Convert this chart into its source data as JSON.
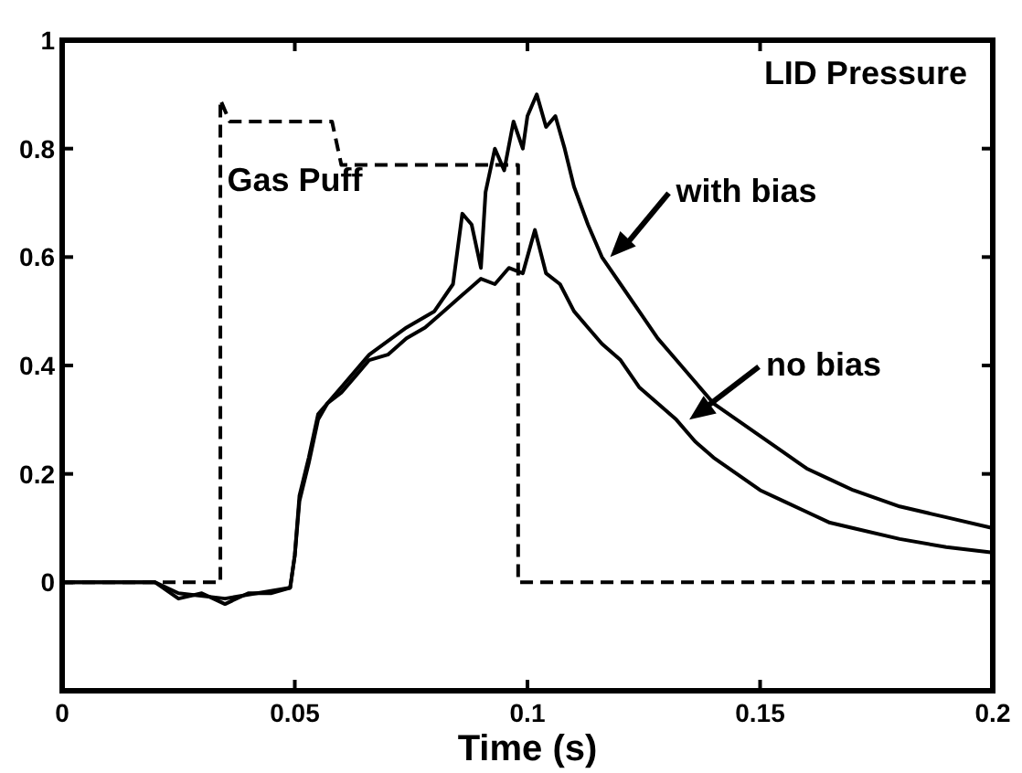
{
  "chart_data": {
    "type": "line",
    "title": "LID Pressure",
    "xlabel": "Time (s)",
    "xlim": [
      0,
      0.2
    ],
    "xticks": [
      0,
      0.05,
      0.1,
      0.15,
      0.2
    ],
    "ylim": [
      -0.2,
      1
    ],
    "yticks": [
      0,
      0.2,
      0.4,
      0.6,
      0.8,
      1
    ],
    "series": [
      {
        "name": "Gas Puff",
        "color": "#000000",
        "line_style": "dashed",
        "x": [
          0,
          0.034,
          0.034,
          0.036,
          0.058,
          0.06,
          0.098,
          0.098,
          0.2
        ],
        "values": [
          0,
          0,
          0.89,
          0.85,
          0.85,
          0.77,
          0.77,
          0,
          0
        ]
      },
      {
        "name": "with bias",
        "color": "#000000",
        "line_style": "solid",
        "x": [
          0,
          0.02,
          0.025,
          0.035,
          0.049,
          0.05,
          0.051,
          0.053,
          0.055,
          0.06,
          0.066,
          0.074,
          0.08,
          0.084,
          0.086,
          0.088,
          0.09,
          0.091,
          0.093,
          0.095,
          0.097,
          0.099,
          0.1,
          0.102,
          0.104,
          0.106,
          0.108,
          0.11,
          0.113,
          0.116,
          0.12,
          0.124,
          0.128,
          0.132,
          0.136,
          0.14,
          0.145,
          0.15,
          0.155,
          0.16,
          0.165,
          0.17,
          0.18,
          0.19,
          0.2
        ],
        "values": [
          0,
          0,
          -0.02,
          -0.03,
          -0.01,
          0.05,
          0.16,
          0.23,
          0.31,
          0.36,
          0.42,
          0.47,
          0.5,
          0.55,
          0.68,
          0.66,
          0.58,
          0.72,
          0.8,
          0.76,
          0.85,
          0.8,
          0.86,
          0.9,
          0.84,
          0.86,
          0.8,
          0.73,
          0.66,
          0.6,
          0.55,
          0.5,
          0.45,
          0.41,
          0.37,
          0.33,
          0.3,
          0.27,
          0.24,
          0.21,
          0.19,
          0.17,
          0.14,
          0.12,
          0.1
        ]
      },
      {
        "name": "no bias",
        "color": "#000000",
        "line_style": "solid",
        "x": [
          0,
          0.02,
          0.025,
          0.03,
          0.035,
          0.04,
          0.045,
          0.049,
          0.05,
          0.051,
          0.053,
          0.055,
          0.057,
          0.06,
          0.063,
          0.066,
          0.07,
          0.074,
          0.078,
          0.082,
          0.086,
          0.09,
          0.093,
          0.096,
          0.099,
          0.1016,
          0.104,
          0.107,
          0.11,
          0.113,
          0.116,
          0.12,
          0.124,
          0.128,
          0.132,
          0.136,
          0.14,
          0.145,
          0.15,
          0.155,
          0.16,
          0.165,
          0.17,
          0.18,
          0.19,
          0.2
        ],
        "values": [
          0,
          0,
          -0.03,
          -0.02,
          -0.04,
          -0.02,
          -0.02,
          -0.01,
          0.05,
          0.15,
          0.22,
          0.3,
          0.33,
          0.35,
          0.38,
          0.41,
          0.42,
          0.45,
          0.47,
          0.5,
          0.53,
          0.56,
          0.55,
          0.58,
          0.57,
          0.65,
          0.57,
          0.55,
          0.5,
          0.47,
          0.44,
          0.41,
          0.36,
          0.33,
          0.3,
          0.26,
          0.23,
          0.2,
          0.17,
          0.15,
          0.13,
          0.11,
          0.1,
          0.08,
          0.065,
          0.055
        ]
      }
    ]
  }
}
